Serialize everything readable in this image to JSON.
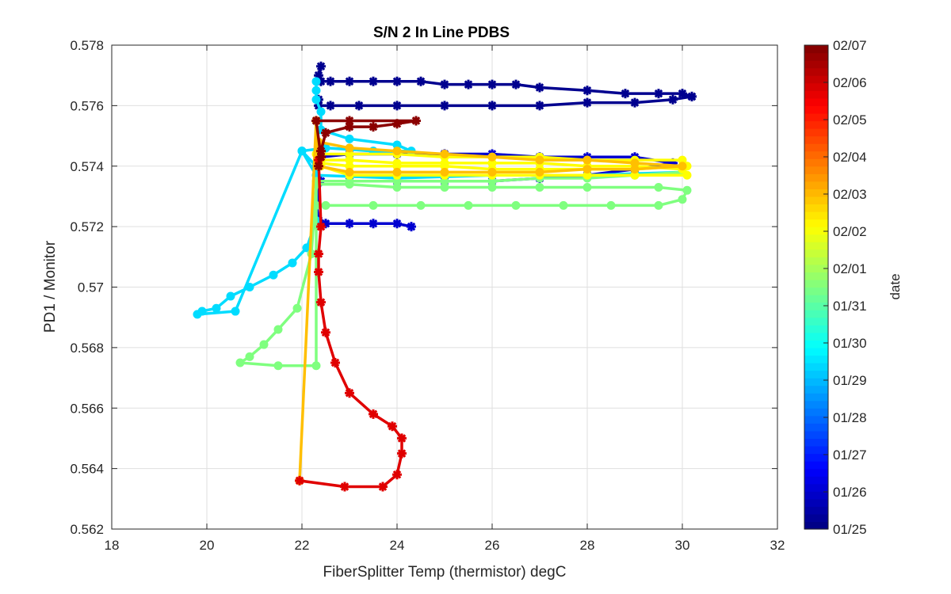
{
  "chart_data": {
    "type": "line",
    "title": "S/N 2 In Line PDBS",
    "xlabel": "FiberSplitter Temp (thermistor) degC",
    "ylabel": "PD1 / Monitor",
    "xlim": [
      18,
      32
    ],
    "ylim": [
      0.562,
      0.578
    ],
    "x_ticks": [
      "18",
      "20",
      "22",
      "24",
      "26",
      "28",
      "30",
      "32"
    ],
    "y_ticks": [
      "0.562",
      "0.564",
      "0.566",
      "0.568",
      "0.57",
      "0.572",
      "0.574",
      "0.576",
      "0.578"
    ],
    "grid": true,
    "colorbar": {
      "label": "date",
      "colormap": "jet",
      "ticks": [
        "01/25",
        "01/26",
        "01/27",
        "01/28",
        "01/29",
        "01/30",
        "01/31",
        "02/01",
        "02/02",
        "02/03",
        "02/04",
        "02/05",
        "02/06",
        "02/07"
      ]
    },
    "series": [
      {
        "date": "01/25",
        "color": "#00008f",
        "marker": "star",
        "x": [
          22.4,
          22.35,
          22.4,
          22.6,
          23.0,
          23.5,
          24.0,
          24.5,
          25.0,
          25.5,
          26.0,
          26.5,
          27.0,
          28.0,
          28.8,
          29.5,
          30.0,
          30.2,
          30.2,
          29.8,
          29.0,
          28.0,
          27.0,
          26.0,
          25.0,
          24.0,
          23.2,
          22.6,
          22.35,
          22.35
        ],
        "y": [
          0.5773,
          0.577,
          0.5768,
          0.5768,
          0.5768,
          0.5768,
          0.5768,
          0.5768,
          0.5767,
          0.5767,
          0.5767,
          0.5767,
          0.5766,
          0.5765,
          0.5764,
          0.5764,
          0.5764,
          0.5763,
          0.5763,
          0.5762,
          0.5761,
          0.5761,
          0.576,
          0.576,
          0.576,
          0.576,
          0.576,
          0.576,
          0.576,
          0.5762
        ]
      },
      {
        "date": "01/26",
        "color": "#0000d0",
        "marker": "star",
        "x": [
          22.35,
          22.4,
          23.0,
          24.0,
          25.0,
          26.0,
          27.0,
          28.0,
          29.0,
          29.8,
          29.0,
          28.0,
          27.0,
          26.0,
          25.0,
          24.0,
          23.0,
          22.4,
          22.3,
          22.35,
          22.5,
          23.0,
          23.5,
          24.0,
          24.3
        ],
        "y": [
          0.574,
          0.5743,
          0.5744,
          0.5744,
          0.5744,
          0.5744,
          0.5743,
          0.5743,
          0.5743,
          0.5741,
          0.5739,
          0.5737,
          0.5736,
          0.5735,
          0.5735,
          0.5735,
          0.5735,
          0.5735,
          0.5728,
          0.5722,
          0.5721,
          0.5721,
          0.5721,
          0.5721,
          0.572
        ]
      },
      {
        "date": "01/30",
        "color": "#00dcff",
        "marker": "circle",
        "x": [
          22.3,
          22.3,
          22.3,
          22.4,
          22.4,
          23.0,
          24.0,
          24.3,
          23.5,
          22.5,
          22.0,
          22.3,
          22.3,
          22.1,
          21.8,
          21.4,
          20.9,
          20.5,
          20.2,
          19.9,
          19.8,
          20.6,
          22.0,
          22.3,
          24.0,
          26.0,
          28.0,
          30.0
        ],
        "y": [
          0.5768,
          0.5765,
          0.5762,
          0.5758,
          0.5752,
          0.5749,
          0.5747,
          0.5745,
          0.5745,
          0.5746,
          0.5745,
          0.574,
          0.5722,
          0.5713,
          0.5708,
          0.5704,
          0.57,
          0.5697,
          0.5693,
          0.5692,
          0.5691,
          0.5692,
          0.5745,
          0.5737,
          0.5736,
          0.5737,
          0.5737,
          0.5738
        ]
      },
      {
        "date": "01/31",
        "color": "#7fff7f",
        "marker": "circle",
        "x": [
          22.3,
          22.5,
          23.5,
          24.5,
          25.5,
          26.5,
          27.5,
          28.5,
          29.5,
          30.0,
          30.1,
          29.5,
          28.0,
          27.0,
          26.0,
          25.0,
          24.0,
          23.0,
          22.3,
          22.2,
          21.9,
          21.5,
          21.2,
          20.9,
          20.7,
          21.5,
          22.3,
          22.3,
          23.0,
          24.0,
          25.0,
          26.0,
          27.0,
          28.0,
          29.0,
          30.0
        ],
        "y": [
          0.5727,
          0.5727,
          0.5727,
          0.5727,
          0.5727,
          0.5727,
          0.5727,
          0.5727,
          0.5727,
          0.5729,
          0.5732,
          0.5733,
          0.5733,
          0.5733,
          0.5733,
          0.5733,
          0.5733,
          0.5734,
          0.5734,
          0.5711,
          0.5693,
          0.5686,
          0.5681,
          0.5677,
          0.5675,
          0.5674,
          0.5674,
          0.5735,
          0.5735,
          0.5735,
          0.5735,
          0.5735,
          0.5736,
          0.5736,
          0.5737,
          0.5738
        ]
      },
      {
        "date": "02/02",
        "color": "#ffff00",
        "marker": "circle",
        "x": [
          22.3,
          23.0,
          24.0,
          25.0,
          26.0,
          27.0,
          28.0,
          29.0,
          30.0,
          30.1,
          29.0,
          28.0,
          27.0,
          26.0,
          25.0,
          24.0,
          23.0,
          22.4,
          22.4,
          23.0,
          24.0,
          25.0,
          26.0,
          27.0,
          28.0,
          29.0,
          30.0,
          30.1,
          29.0,
          28.0,
          27.0,
          26.0,
          25.0,
          24.0,
          23.0,
          22.4
        ],
        "y": [
          0.5744,
          0.5744,
          0.5744,
          0.5743,
          0.5743,
          0.5743,
          0.5742,
          0.5742,
          0.5742,
          0.574,
          0.5739,
          0.5739,
          0.5739,
          0.5739,
          0.574,
          0.574,
          0.574,
          0.5741,
          0.5742,
          0.5742,
          0.5741,
          0.5741,
          0.5741,
          0.5741,
          0.574,
          0.574,
          0.5739,
          0.5737,
          0.5737,
          0.5737,
          0.5737,
          0.5737,
          0.5737,
          0.5737,
          0.5737,
          0.574
        ]
      },
      {
        "date": "02/03",
        "color": "#ffbf00",
        "marker": "circle",
        "x": [
          22.35,
          23.0,
          24.0,
          25.0,
          26.0,
          27.0,
          28.0,
          29.0,
          30.0,
          29.0,
          28.0,
          27.0,
          26.0,
          25.0,
          24.0,
          23.0,
          22.35,
          22.3,
          21.95
        ],
        "y": [
          0.5748,
          0.5746,
          0.5745,
          0.5744,
          0.5743,
          0.5742,
          0.5742,
          0.5741,
          0.574,
          0.5739,
          0.5739,
          0.5738,
          0.5738,
          0.5738,
          0.5738,
          0.5738,
          0.574,
          0.5755,
          0.5636
        ]
      },
      {
        "date": "02/05",
        "color": "#e00000",
        "marker": "star",
        "x": [
          21.95,
          22.9,
          23.7,
          24.0,
          24.1,
          24.1,
          23.9,
          23.5,
          23.0,
          22.7,
          22.5,
          22.4,
          22.35,
          22.35,
          22.4,
          22.35
        ],
        "y": [
          0.5636,
          0.5634,
          0.5634,
          0.5638,
          0.5645,
          0.565,
          0.5654,
          0.5658,
          0.5665,
          0.5675,
          0.5685,
          0.5695,
          0.5705,
          0.5711,
          0.572,
          0.5742
        ]
      },
      {
        "date": "02/06",
        "color": "#8b0000",
        "marker": "star",
        "x": [
          22.35,
          22.4,
          22.5,
          23.0,
          23.5,
          24.0,
          24.4,
          23.0,
          22.3,
          22.4
        ],
        "y": [
          0.574,
          0.5745,
          0.5751,
          0.5753,
          0.5753,
          0.5754,
          0.5755,
          0.5755,
          0.5755,
          0.5743
        ]
      }
    ]
  }
}
